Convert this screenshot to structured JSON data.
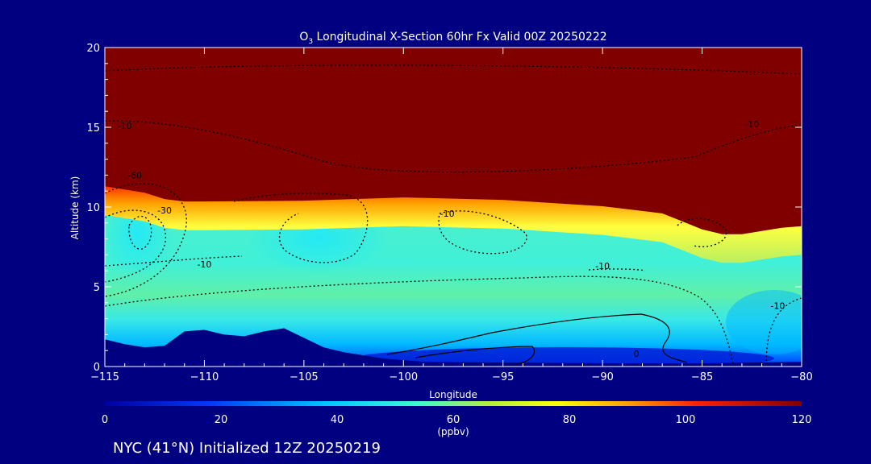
{
  "chart_data": {
    "type": "heatmap",
    "title_main": "O",
    "title_sub": "3",
    "title_rest": " Longitudinal X-Section 60hr  Fx Valid 00Z 20250222",
    "xlabel": "Longitude",
    "ylabel": "Altitude (km)",
    "xlim": [
      -115,
      -80
    ],
    "ylim": [
      0,
      20
    ],
    "x_ticks": [
      -115,
      -110,
      -105,
      -100,
      -95,
      -90,
      -85,
      -80
    ],
    "x_tick_labels": [
      "−115",
      "−110",
      "−105",
      "−100",
      "−95",
      "−90",
      "−85",
      "−80"
    ],
    "y_ticks": [
      0,
      5,
      10,
      15,
      20
    ],
    "y_tick_labels": [
      "0",
      "5",
      "10",
      "15",
      "20"
    ],
    "colorbar": {
      "min": 0,
      "max": 120,
      "ticks": [
        0,
        20,
        40,
        60,
        80,
        100,
        120
      ],
      "tick_labels": [
        "0",
        "20",
        "40",
        "60",
        "80",
        "100",
        "120"
      ],
      "units": "(ppbv)"
    },
    "tropopause_km": [
      [
        -115,
        11.3
      ],
      [
        -114,
        11.1
      ],
      [
        -113,
        10.9
      ],
      [
        -112,
        10.5
      ],
      [
        -111,
        10.35
      ],
      [
        -110,
        10.35
      ],
      [
        -105,
        10.4
      ],
      [
        -100,
        10.6
      ],
      [
        -95,
        10.45
      ],
      [
        -90,
        10.05
      ],
      [
        -87,
        9.6
      ],
      [
        -86,
        9.1
      ],
      [
        -85,
        8.6
      ],
      [
        -84,
        8.3
      ],
      [
        -83,
        8.3
      ],
      [
        -82,
        8.5
      ],
      [
        -81,
        8.7
      ],
      [
        -80,
        8.8
      ]
    ],
    "terrain_km": [
      [
        -115,
        1.7
      ],
      [
        -114,
        1.4
      ],
      [
        -113,
        1.2
      ],
      [
        -112,
        1.3
      ],
      [
        -111,
        2.2
      ],
      [
        -110,
        2.3
      ],
      [
        -109,
        2.0
      ],
      [
        -108,
        1.9
      ],
      [
        -107,
        2.2
      ],
      [
        -106,
        2.4
      ],
      [
        -105,
        1.8
      ],
      [
        -104,
        1.2
      ],
      [
        -103,
        0.9
      ],
      [
        -102,
        0.7
      ],
      [
        -101,
        0.5
      ],
      [
        -100,
        0.4
      ],
      [
        -99,
        0.3
      ],
      [
        -95,
        0.25
      ],
      [
        -90,
        0.2
      ],
      [
        -85,
        0.2
      ],
      [
        -80,
        0.3
      ]
    ],
    "contour_labels": [
      {
        "lon": -114,
        "alt": 14.9,
        "text": "-10"
      },
      {
        "lon": -113.5,
        "alt": 11.8,
        "text": "-60"
      },
      {
        "lon": -112,
        "alt": 9.6,
        "text": "-30"
      },
      {
        "lon": -110,
        "alt": 6.2,
        "text": "-10"
      },
      {
        "lon": -97.8,
        "alt": 9.4,
        "text": "-10"
      },
      {
        "lon": -90,
        "alt": 6.1,
        "text": "-10"
      },
      {
        "lon": -82.5,
        "alt": 15.0,
        "text": "-10"
      },
      {
        "lon": -81.2,
        "alt": 3.6,
        "text": "-10"
      },
      {
        "lon": -88.3,
        "alt": 0.6,
        "text": "0"
      }
    ]
  },
  "footer": "NYC (41°N) Initialized 12Z 20250219",
  "colors": {
    "background": "#000080",
    "stratosphere": "#800000"
  }
}
